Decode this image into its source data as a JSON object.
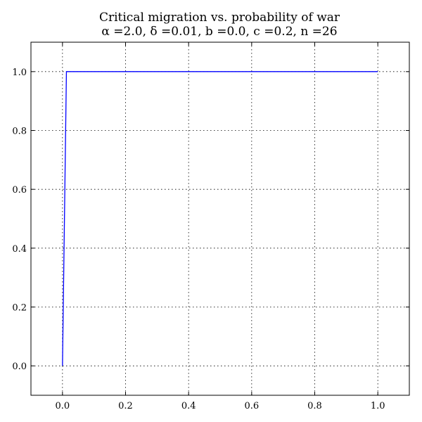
{
  "chart_data": {
    "type": "line",
    "title_line1": "Critical migration vs. probability of war",
    "title_line2": "α =2.0, δ =0.01, b =0.0, c =0.2, n =26",
    "xlabel": "",
    "ylabel": "",
    "xlim": [
      -0.1,
      1.1
    ],
    "ylim": [
      -0.1,
      1.1
    ],
    "xticks": [
      0.0,
      0.2,
      0.4,
      0.6,
      0.8,
      1.0
    ],
    "xtick_labels": [
      "0.0",
      "0.2",
      "0.4",
      "0.6",
      "0.8",
      "1.0"
    ],
    "yticks": [
      0.0,
      0.2,
      0.4,
      0.6,
      0.8,
      1.0
    ],
    "ytick_labels": [
      "0.0",
      "0.2",
      "0.4",
      "0.6",
      "0.8",
      "1.0"
    ],
    "grid": true,
    "series": [
      {
        "color": "#0000ff",
        "x": [
          0.0,
          0.0125,
          1.0
        ],
        "y": [
          0.0,
          1.0,
          1.0
        ]
      }
    ]
  }
}
